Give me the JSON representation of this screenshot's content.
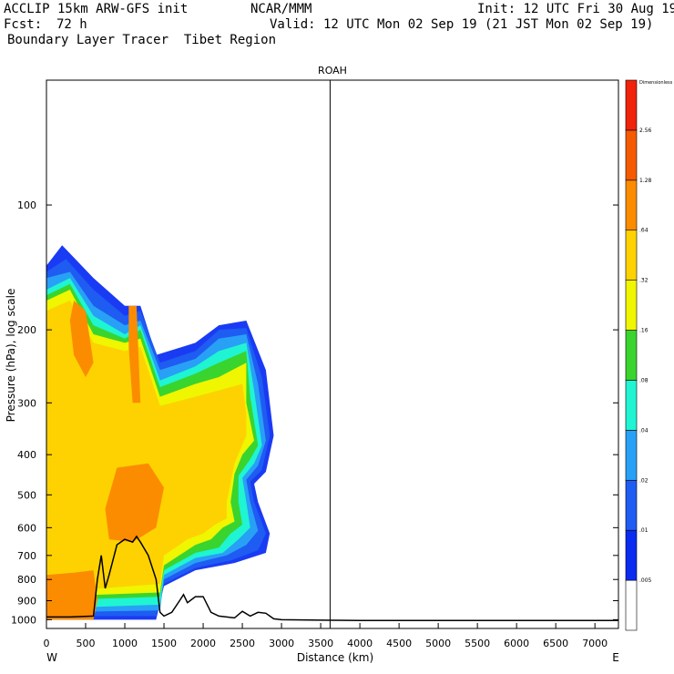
{
  "header": {
    "title_left": "ACCLIP 15km ARW-GFS init",
    "center_org": "NCAR/MMM",
    "init_label": "Init: 12 UTC Fri 30 Aug 19",
    "fcst_label": "Fcst:",
    "fcst_value": "72 h",
    "valid_label": "Valid: 12 UTC Mon 02 Sep 19 (21 JST Mon 02 Sep 19)",
    "subtitle": "Boundary Layer Tracer  Tibet Region"
  },
  "chart_data": {
    "type": "heatmap",
    "title": "ROAH",
    "xlabel": "Distance (km)",
    "ylabel": "Pressure (hPa), log scale",
    "xlim": [
      0,
      7300
    ],
    "ylim": [
      1050,
      50
    ],
    "y_scale": "log",
    "x_ticks": [
      0,
      500,
      1000,
      1500,
      2000,
      2500,
      3000,
      3500,
      4000,
      4500,
      5000,
      5500,
      6000,
      6500,
      7000
    ],
    "x_tick_labels": [
      "0",
      "500",
      "1000",
      "1500",
      "2000",
      "2500",
      "3000",
      "3500",
      "4000",
      "4500",
      "5000",
      "5500",
      "6000",
      "6500",
      "7000"
    ],
    "y_ticks": [
      100,
      200,
      300,
      400,
      500,
      600,
      700,
      800,
      900,
      1000
    ],
    "y_tick_labels": [
      "100",
      "200",
      "300",
      "400",
      "500",
      "600",
      "700",
      "800",
      "900",
      "1000"
    ],
    "x_end_labels": {
      "left": "W",
      "right": "E"
    },
    "marker_line_x": 3620,
    "colorbar": {
      "unit_label": "Dimensionless",
      "levels": [
        ".005",
        ".01",
        ".02",
        ".04",
        ".08",
        ".16",
        ".32",
        ".64",
        "1.28",
        "2.56"
      ],
      "colors": [
        "#ffffff",
        "#0a2bf0",
        "#1f5cf2",
        "#28a0f6",
        "#1ff5d2",
        "#3ad42e",
        "#f0f500",
        "#fdd200",
        "#fb8c00",
        "#f55a00",
        "#f0220a"
      ]
    },
    "contour_levels": [
      {
        "label": ".01",
        "color": "#1a3bf4",
        "outline": [
          [
            0,
            140
          ],
          [
            200,
            125
          ],
          [
            600,
            150
          ],
          [
            1000,
            175
          ],
          [
            1200,
            175
          ],
          [
            1400,
            230
          ],
          [
            1900,
            215
          ],
          [
            2200,
            195
          ],
          [
            2550,
            190
          ],
          [
            2800,
            250
          ],
          [
            2900,
            360
          ],
          [
            2800,
            440
          ],
          [
            2650,
            470
          ],
          [
            2700,
            520
          ],
          [
            2850,
            620
          ],
          [
            2800,
            690
          ],
          [
            2400,
            730
          ],
          [
            1900,
            760
          ],
          [
            1500,
            830
          ],
          [
            1400,
            1000
          ],
          [
            0,
            1000
          ]
        ]
      },
      {
        "label": ".02",
        "color": "#1f5cf2",
        "outline": [
          [
            0,
            145
          ],
          [
            250,
            135
          ],
          [
            600,
            160
          ],
          [
            1000,
            185
          ],
          [
            1200,
            180
          ],
          [
            1450,
            240
          ],
          [
            1900,
            225
          ],
          [
            2200,
            200
          ],
          [
            2550,
            198
          ],
          [
            2750,
            260
          ],
          [
            2850,
            360
          ],
          [
            2750,
            435
          ],
          [
            2600,
            465
          ],
          [
            2650,
            520
          ],
          [
            2800,
            620
          ],
          [
            2700,
            680
          ],
          [
            2350,
            720
          ],
          [
            1900,
            750
          ],
          [
            1500,
            820
          ],
          [
            1400,
            980
          ],
          [
            0,
            980
          ]
        ]
      },
      {
        "label": ".04",
        "color": "#28a0f6",
        "outline": [
          [
            0,
            150
          ],
          [
            300,
            145
          ],
          [
            600,
            175
          ],
          [
            1000,
            195
          ],
          [
            1200,
            190
          ],
          [
            1450,
            250
          ],
          [
            1900,
            235
          ],
          [
            2200,
            210
          ],
          [
            2550,
            205
          ],
          [
            2700,
            270
          ],
          [
            2800,
            370
          ],
          [
            2700,
            425
          ],
          [
            2550,
            460
          ],
          [
            2600,
            520
          ],
          [
            2700,
            610
          ],
          [
            2550,
            660
          ],
          [
            2300,
            700
          ],
          [
            1900,
            730
          ],
          [
            1500,
            800
          ],
          [
            1450,
            950
          ],
          [
            0,
            960
          ]
        ]
      },
      {
        "label": ".08",
        "color": "#1ff5d2",
        "outline": [
          [
            0,
            160
          ],
          [
            300,
            150
          ],
          [
            600,
            185
          ],
          [
            1000,
            205
          ],
          [
            1200,
            195
          ],
          [
            1450,
            265
          ],
          [
            1900,
            245
          ],
          [
            2200,
            225
          ],
          [
            2550,
            215
          ],
          [
            2650,
            280
          ],
          [
            2750,
            380
          ],
          [
            2650,
            420
          ],
          [
            2500,
            455
          ],
          [
            2550,
            520
          ],
          [
            2600,
            600
          ],
          [
            2450,
            640
          ],
          [
            2250,
            690
          ],
          [
            1900,
            710
          ],
          [
            1500,
            780
          ],
          [
            1450,
            920
          ],
          [
            0,
            940
          ]
        ]
      },
      {
        "label": ".16",
        "color": "#3ad42e",
        "outline": [
          [
            0,
            165
          ],
          [
            300,
            155
          ],
          [
            600,
            195
          ],
          [
            1000,
            210
          ],
          [
            1200,
            200
          ],
          [
            1450,
            275
          ],
          [
            1900,
            255
          ],
          [
            2200,
            240
          ],
          [
            2550,
            225
          ],
          [
            2600,
            290
          ],
          [
            2700,
            380
          ],
          [
            2600,
            410
          ],
          [
            2450,
            450
          ],
          [
            2450,
            520
          ],
          [
            2500,
            590
          ],
          [
            2350,
            620
          ],
          [
            2200,
            670
          ],
          [
            1900,
            690
          ],
          [
            1500,
            760
          ],
          [
            1450,
            880
          ],
          [
            0,
            900
          ]
        ]
      },
      {
        "label": ".32",
        "color": "#f0f500",
        "outline": [
          [
            0,
            170
          ],
          [
            300,
            160
          ],
          [
            600,
            205
          ],
          [
            1000,
            215
          ],
          [
            1200,
            210
          ],
          [
            1450,
            290
          ],
          [
            1900,
            270
          ],
          [
            2200,
            260
          ],
          [
            2550,
            240
          ],
          [
            2550,
            300
          ],
          [
            2650,
            370
          ],
          [
            2500,
            400
          ],
          [
            2400,
            445
          ],
          [
            2350,
            520
          ],
          [
            2400,
            580
          ],
          [
            2250,
            600
          ],
          [
            2100,
            640
          ],
          [
            1900,
            660
          ],
          [
            1500,
            740
          ],
          [
            1450,
            860
          ],
          [
            0,
            880
          ]
        ]
      },
      {
        "label": ".64",
        "color": "#fdd200",
        "outline": [
          [
            0,
            180
          ],
          [
            300,
            170
          ],
          [
            600,
            215
          ],
          [
            1000,
            225
          ],
          [
            1200,
            220
          ],
          [
            1450,
            305
          ],
          [
            1900,
            290
          ],
          [
            2200,
            280
          ],
          [
            2500,
            270
          ],
          [
            2550,
            320
          ],
          [
            2550,
            360
          ],
          [
            2400,
            420
          ],
          [
            2300,
            520
          ],
          [
            2300,
            570
          ],
          [
            2150,
            590
          ],
          [
            2000,
            620
          ],
          [
            1800,
            640
          ],
          [
            1500,
            700
          ],
          [
            1450,
            820
          ],
          [
            0,
            860
          ]
        ]
      },
      {
        "label": "1.28",
        "color": "#fb8c00",
        "outline": [
          [
            350,
            170
          ],
          [
            500,
            180
          ],
          [
            600,
            240
          ],
          [
            500,
            260
          ],
          [
            350,
            230
          ],
          [
            300,
            190
          ]
        ]
      },
      {
        "label": "1.28",
        "color": "#fb8c00",
        "outline": [
          [
            1050,
            175
          ],
          [
            1150,
            175
          ],
          [
            1200,
            300
          ],
          [
            1100,
            300
          ],
          [
            1050,
            220
          ]
        ]
      },
      {
        "label": "1.28",
        "color": "#fb8c00",
        "outline": [
          [
            900,
            430
          ],
          [
            1300,
            420
          ],
          [
            1500,
            480
          ],
          [
            1400,
            600
          ],
          [
            1100,
            650
          ],
          [
            800,
            640
          ],
          [
            750,
            540
          ]
        ]
      },
      {
        "label": "1.28",
        "color": "#fb8c00",
        "outline": [
          [
            0,
            780
          ],
          [
            350,
            770
          ],
          [
            600,
            760
          ],
          [
            650,
            900
          ],
          [
            600,
            1000
          ],
          [
            0,
            1000
          ]
        ]
      }
    ],
    "terrain": {
      "label": "surface pressure",
      "x": [
        0,
        300,
        600,
        650,
        700,
        750,
        800,
        900,
        1000,
        1100,
        1150,
        1200,
        1300,
        1400,
        1450,
        1500,
        1600,
        1700,
        1750,
        1800,
        1900,
        2000,
        2100,
        2200,
        2300,
        2400,
        2500,
        2600,
        2700,
        2800,
        2900,
        3000,
        3500,
        4000,
        5000,
        6000,
        7000,
        7300
      ],
      "p": [
        985,
        985,
        980,
        800,
        700,
        840,
        780,
        660,
        640,
        650,
        630,
        650,
        700,
        800,
        960,
        980,
        960,
        900,
        870,
        910,
        880,
        880,
        960,
        980,
        985,
        990,
        955,
        980,
        960,
        965,
        995,
        1000,
        1003,
        1005,
        1005,
        1005,
        1005,
        1005
      ]
    }
  }
}
